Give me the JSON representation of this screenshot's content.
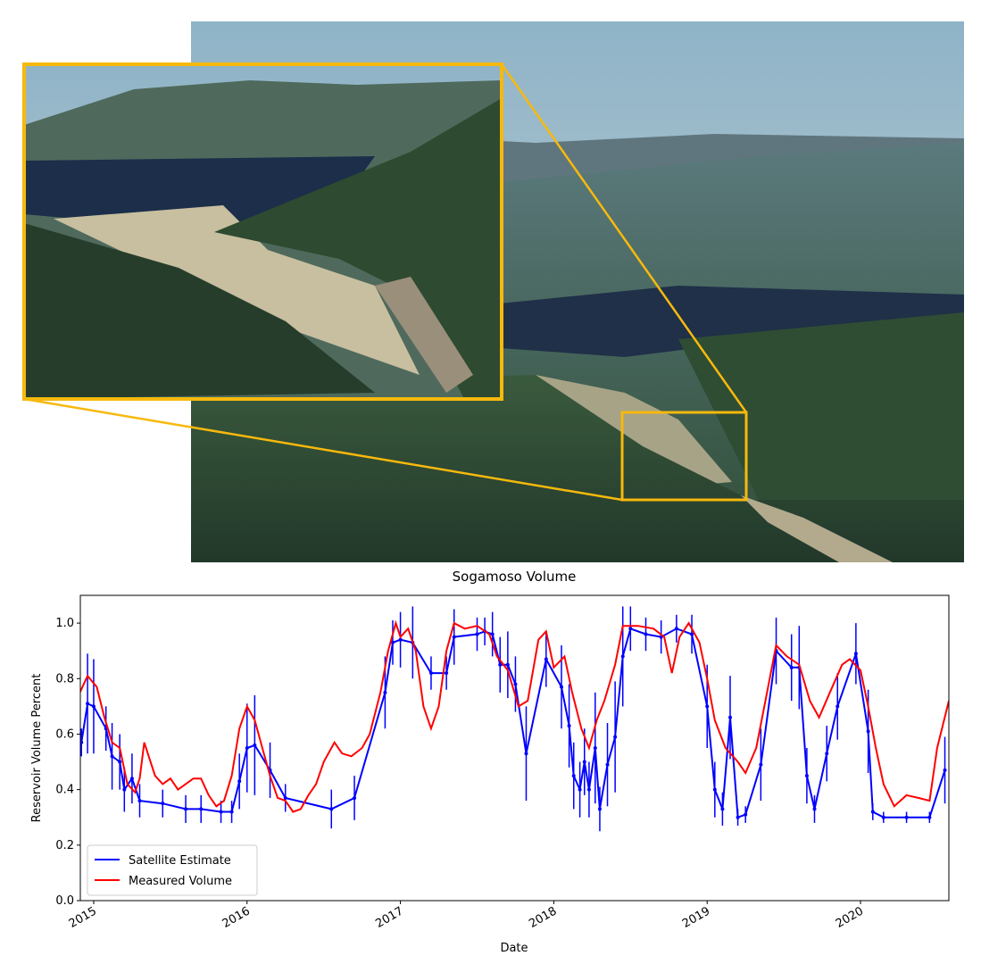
{
  "chart_data": {
    "type": "line",
    "title": "Sogamoso Volume",
    "xlabel": "Date",
    "ylabel": "Reservoir Volume Percent",
    "xlim": [
      2014.913,
      2020.576
    ],
    "xticks": [
      2015,
      2016,
      2017,
      2018,
      2019,
      2020
    ],
    "ylim": [
      0,
      1.1
    ],
    "yticks": [
      {
        "value": 0,
        "label": "0.0"
      },
      0.2,
      0.4,
      0.6,
      0.8,
      {
        "value": 1,
        "label": "1.0"
      }
    ],
    "legend": "lower left",
    "series": [
      {
        "name": "Satellite Estimate",
        "color": "#0000ff",
        "x": [
          2014.92,
          2014.96,
          2015.0,
          2015.08,
          2015.12,
          2015.17,
          2015.2,
          2015.25,
          2015.3,
          2015.45,
          2015.6,
          2015.7,
          2015.83,
          2015.9,
          2015.95,
          2016.0,
          2016.05,
          2016.15,
          2016.25,
          2016.55,
          2016.7,
          2016.9,
          2016.95,
          2017.0,
          2017.08,
          2017.2,
          2017.3,
          2017.35,
          2017.5,
          2017.55,
          2017.6,
          2017.65,
          2017.7,
          2017.75,
          2017.82,
          2017.95,
          2018.05,
          2018.1,
          2018.13,
          2018.17,
          2018.2,
          2018.23,
          2018.27,
          2018.3,
          2018.35,
          2018.4,
          2018.45,
          2018.5,
          2018.6,
          2018.7,
          2018.8,
          2018.9,
          2019.0,
          2019.05,
          2019.1,
          2019.15,
          2019.2,
          2019.25,
          2019.35,
          2019.45,
          2019.55,
          2019.6,
          2019.65,
          2019.7,
          2019.78,
          2019.85,
          2019.97,
          2020.05,
          2020.08,
          2020.15,
          2020.3,
          2020.45,
          2020.55
        ],
        "values": [
          0.57,
          0.71,
          0.7,
          0.62,
          0.52,
          0.5,
          0.4,
          0.44,
          0.36,
          0.35,
          0.33,
          0.33,
          0.32,
          0.32,
          0.43,
          0.55,
          0.56,
          0.47,
          0.37,
          0.33,
          0.37,
          0.75,
          0.93,
          0.94,
          0.93,
          0.82,
          0.82,
          0.95,
          0.96,
          0.97,
          0.96,
          0.85,
          0.85,
          0.78,
          0.53,
          0.87,
          0.77,
          0.63,
          0.45,
          0.4,
          0.5,
          0.4,
          0.55,
          0.33,
          0.49,
          0.59,
          0.88,
          0.98,
          0.96,
          0.95,
          0.98,
          0.96,
          0.7,
          0.4,
          0.33,
          0.66,
          0.3,
          0.31,
          0.49,
          0.9,
          0.84,
          0.84,
          0.45,
          0.33,
          0.53,
          0.7,
          0.89,
          0.61,
          0.32,
          0.3,
          0.3,
          0.3,
          0.47
        ],
        "errors": [
          0.05,
          0.18,
          0.17,
          0.08,
          0.12,
          0.1,
          0.08,
          0.09,
          0.06,
          0.05,
          0.05,
          0.05,
          0.04,
          0.04,
          0.1,
          0.16,
          0.18,
          0.1,
          0.05,
          0.07,
          0.08,
          0.13,
          0.08,
          0.1,
          0.13,
          0.06,
          0.06,
          0.1,
          0.06,
          0.05,
          0.08,
          0.1,
          0.12,
          0.1,
          0.17,
          0.1,
          0.15,
          0.15,
          0.12,
          0.1,
          0.12,
          0.1,
          0.2,
          0.08,
          0.15,
          0.2,
          0.18,
          0.08,
          0.06,
          0.06,
          0.05,
          0.07,
          0.15,
          0.1,
          0.06,
          0.15,
          0.03,
          0.03,
          0.13,
          0.12,
          0.12,
          0.15,
          0.1,
          0.05,
          0.1,
          0.12,
          0.11,
          0.15,
          0.03,
          0.02,
          0.02,
          0.02,
          0.12
        ]
      },
      {
        "name": "Measured Volume",
        "color": "#ff0000",
        "x": [
          2014.91,
          2014.96,
          2015.02,
          2015.07,
          2015.12,
          2015.17,
          2015.22,
          2015.27,
          2015.3,
          2015.33,
          2015.4,
          2015.45,
          2015.5,
          2015.55,
          2015.6,
          2015.65,
          2015.7,
          2015.75,
          2015.8,
          2015.85,
          2015.9,
          2015.95,
          2016.0,
          2016.05,
          2016.1,
          2016.15,
          2016.2,
          2016.25,
          2016.3,
          2016.35,
          2016.4,
          2016.45,
          2016.5,
          2016.57,
          2016.62,
          2016.68,
          2016.75,
          2016.8,
          2016.87,
          2016.92,
          2016.97,
          2017.0,
          2017.05,
          2017.1,
          2017.15,
          2017.2,
          2017.25,
          2017.3,
          2017.35,
          2017.42,
          2017.5,
          2017.58,
          2017.63,
          2017.7,
          2017.77,
          2017.83,
          2017.9,
          2017.95,
          2018.0,
          2018.07,
          2018.12,
          2018.18,
          2018.23,
          2018.28,
          2018.33,
          2018.4,
          2018.45,
          2018.55,
          2018.65,
          2018.72,
          2018.77,
          2018.82,
          2018.88,
          2018.95,
          2019.0,
          2019.05,
          2019.12,
          2019.2,
          2019.25,
          2019.32,
          2019.38,
          2019.45,
          2019.52,
          2019.6,
          2019.67,
          2019.73,
          2019.8,
          2019.88,
          2019.93,
          2020.0,
          2020.05,
          2020.1,
          2020.15,
          2020.22,
          2020.3,
          2020.38,
          2020.45,
          2020.5,
          2020.576
        ],
        "values": [
          0.75,
          0.81,
          0.77,
          0.66,
          0.57,
          0.55,
          0.42,
          0.39,
          0.44,
          0.57,
          0.45,
          0.42,
          0.44,
          0.4,
          0.42,
          0.44,
          0.44,
          0.38,
          0.34,
          0.36,
          0.45,
          0.62,
          0.7,
          0.65,
          0.55,
          0.45,
          0.37,
          0.36,
          0.32,
          0.33,
          0.38,
          0.42,
          0.5,
          0.57,
          0.53,
          0.52,
          0.55,
          0.6,
          0.75,
          0.9,
          1.0,
          0.95,
          0.98,
          0.9,
          0.7,
          0.62,
          0.7,
          0.9,
          1.0,
          0.98,
          0.99,
          0.96,
          0.88,
          0.83,
          0.7,
          0.72,
          0.94,
          0.97,
          0.84,
          0.88,
          0.75,
          0.62,
          0.55,
          0.65,
          0.72,
          0.85,
          0.99,
          0.99,
          0.98,
          0.95,
          0.82,
          0.95,
          1.0,
          0.93,
          0.8,
          0.65,
          0.55,
          0.5,
          0.46,
          0.55,
          0.72,
          0.92,
          0.88,
          0.85,
          0.72,
          0.66,
          0.75,
          0.85,
          0.87,
          0.83,
          0.7,
          0.55,
          0.42,
          0.34,
          0.38,
          0.37,
          0.36,
          0.55,
          0.72
        ]
      }
    ]
  }
}
